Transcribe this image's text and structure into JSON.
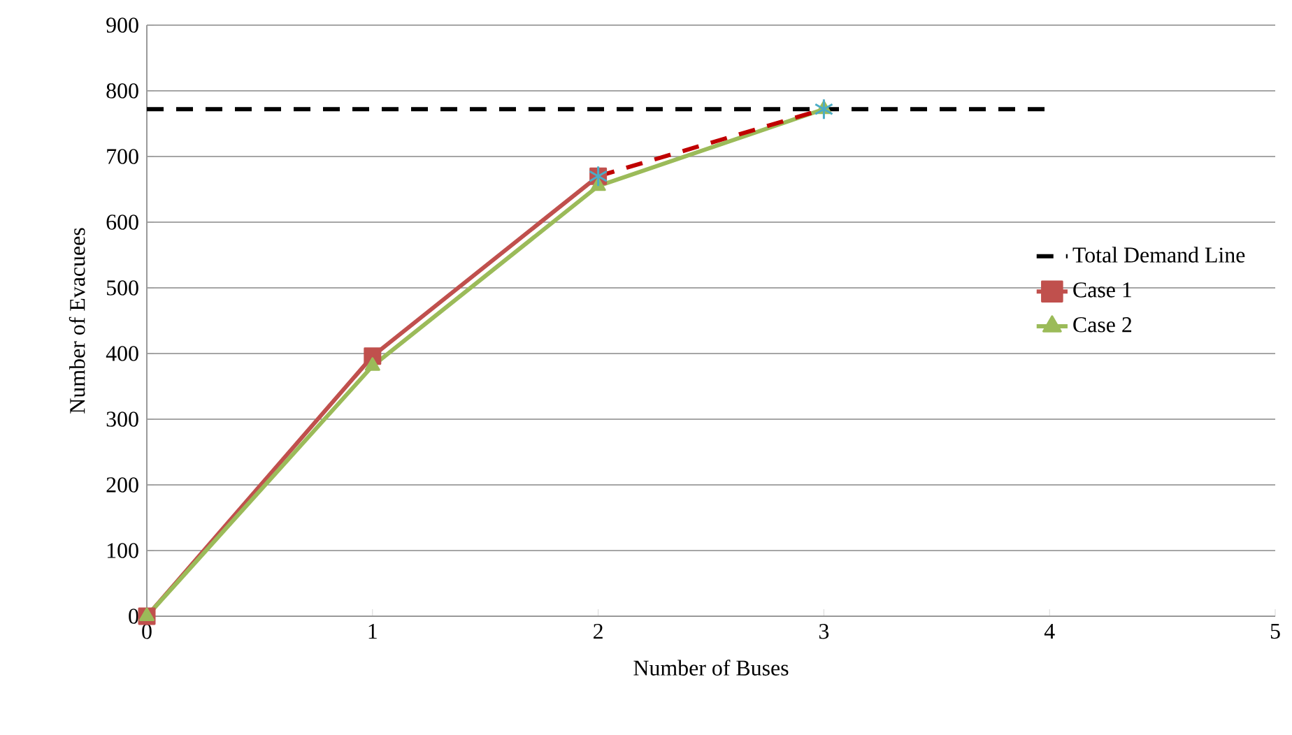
{
  "chart_data": {
    "type": "line",
    "xlabel": "Number of Buses",
    "ylabel": "Number of Evacuees",
    "xlim": [
      0,
      5
    ],
    "xticks": [
      0,
      1,
      2,
      3,
      4,
      5
    ],
    "ylim": [
      0,
      900
    ],
    "yticks": [
      0,
      100,
      200,
      300,
      400,
      500,
      600,
      700,
      800,
      900
    ],
    "grid": "y",
    "legend": "right",
    "series": [
      {
        "name": "Total Demand Line",
        "color": "#000000",
        "x": [
          0,
          4
        ],
        "values": [
          772,
          772
        ],
        "line_style": "dashed",
        "marker": "none"
      },
      {
        "name": "Case 1",
        "color": "#c0504d",
        "x": [
          0,
          1,
          2
        ],
        "values": [
          0,
          396,
          670
        ],
        "marker": "square",
        "line_style": "solid"
      },
      {
        "name": "Case 2",
        "color": "#9bbb59",
        "x": [
          0,
          1,
          2,
          3
        ],
        "values": [
          0,
          381,
          655,
          772
        ],
        "marker": "triangle",
        "line_style": "solid"
      },
      {
        "color": "#c00000",
        "x": [
          2,
          3
        ],
        "values": [
          670,
          772
        ],
        "marker": "none",
        "line_style": "dashed"
      },
      {
        "type": "scatter",
        "color": "#4bacc6",
        "x": [
          2,
          3
        ],
        "values": [
          670,
          772
        ],
        "marker": "cross"
      }
    ]
  }
}
